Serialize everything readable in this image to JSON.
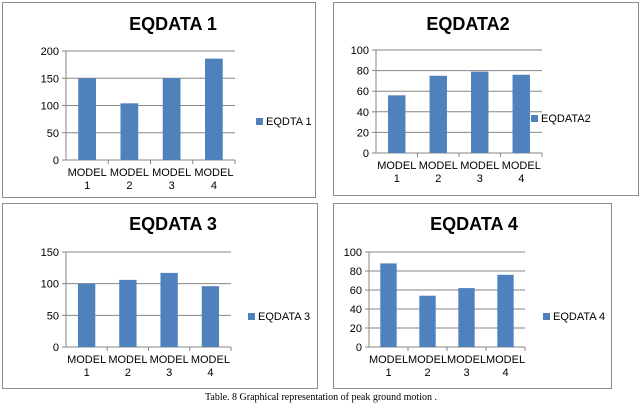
{
  "caption": "Table. 8 Graphical representation of peak ground motion .",
  "colors": {
    "bar": "#4f81bd",
    "grid": "#868686",
    "axis": "#868686"
  },
  "chart_data": [
    {
      "type": "bar",
      "title": "EQDATA 1",
      "categories": [
        [
          "MODEL",
          "1"
        ],
        [
          "MODEL",
          "2"
        ],
        [
          "MODEL",
          "3"
        ],
        [
          "MODEL",
          "4"
        ]
      ],
      "series": [
        {
          "name": "EQDTA 1",
          "values": [
            150,
            104,
            150,
            186
          ]
        }
      ],
      "ylim": [
        0,
        200
      ],
      "yticks": [
        "0",
        "50",
        "100",
        "150",
        "200"
      ],
      "grid": true,
      "legend": "right"
    },
    {
      "type": "bar",
      "title": "EQDATA2",
      "categories": [
        [
          "MODEL",
          "1"
        ],
        [
          "MODEL",
          "2"
        ],
        [
          "MODEL",
          "3"
        ],
        [
          "MODEL",
          "4"
        ]
      ],
      "series": [
        {
          "name": "EQDATA2",
          "values": [
            56,
            75,
            79,
            76
          ]
        }
      ],
      "ylim": [
        0,
        100
      ],
      "yticks": [
        "0",
        "20",
        "40",
        "60",
        "80",
        "100"
      ],
      "grid": true,
      "legend": "right"
    },
    {
      "type": "bar",
      "title": "EQDATA 3",
      "categories": [
        [
          "MODEL",
          "1"
        ],
        [
          "MODEL",
          "2"
        ],
        [
          "MODEL",
          "3"
        ],
        [
          "MODEL",
          "4"
        ]
      ],
      "series": [
        {
          "name": "EQDATA 3",
          "values": [
            100,
            106,
            117,
            96
          ]
        }
      ],
      "ylim": [
        0,
        150
      ],
      "yticks": [
        "0",
        "50",
        "100",
        "150"
      ],
      "grid": true,
      "legend": "right"
    },
    {
      "type": "bar",
      "title": "EQDATA 4",
      "categories": [
        [
          "MODEL",
          "1"
        ],
        [
          "MODEL",
          "2"
        ],
        [
          "MODEL",
          "3"
        ],
        [
          "MODEL",
          "4"
        ]
      ],
      "series": [
        {
          "name": "EQDATA 4",
          "values": [
            88,
            54,
            62,
            76
          ]
        }
      ],
      "ylim": [
        0,
        100
      ],
      "yticks": [
        "0",
        "20",
        "40",
        "60",
        "80",
        "100"
      ],
      "grid": true,
      "legend": "right"
    }
  ]
}
